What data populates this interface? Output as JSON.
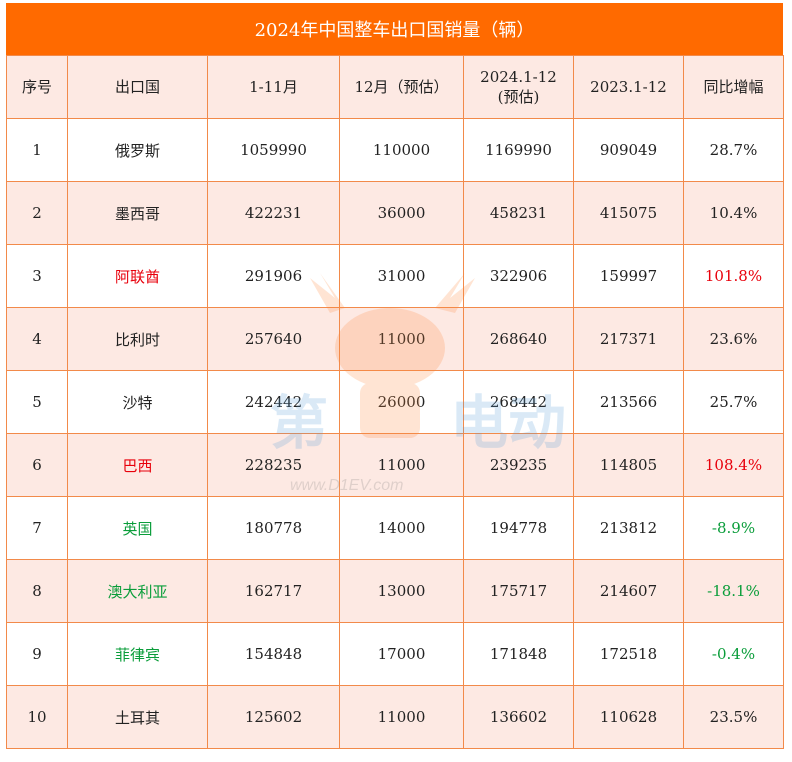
{
  "title": "2024年中国整车出口国销量（辆）",
  "columns": [
    "序号",
    "出口国",
    "1-11月",
    "12月（预估）",
    "2024.1-12\n(预估)",
    "2023.1-12",
    "同比增幅"
  ],
  "rows": [
    {
      "rank": "1",
      "country": "俄罗斯",
      "jan_nov": "1059990",
      "dec_est": "110000",
      "y2024": "1169990",
      "y2023": "909049",
      "yoy": "28.7%",
      "color": "normal"
    },
    {
      "rank": "2",
      "country": "墨西哥",
      "jan_nov": "422231",
      "dec_est": "36000",
      "y2024": "458231",
      "y2023": "415075",
      "yoy": "10.4%",
      "color": "normal"
    },
    {
      "rank": "3",
      "country": "阿联酋",
      "jan_nov": "291906",
      "dec_est": "31000",
      "y2024": "322906",
      "y2023": "159997",
      "yoy": "101.8%",
      "color": "red"
    },
    {
      "rank": "4",
      "country": "比利时",
      "jan_nov": "257640",
      "dec_est": "11000",
      "y2024": "268640",
      "y2023": "217371",
      "yoy": "23.6%",
      "color": "normal"
    },
    {
      "rank": "5",
      "country": "沙特",
      "jan_nov": "242442",
      "dec_est": "26000",
      "y2024": "268442",
      "y2023": "213566",
      "yoy": "25.7%",
      "color": "normal"
    },
    {
      "rank": "6",
      "country": "巴西",
      "jan_nov": "228235",
      "dec_est": "11000",
      "y2024": "239235",
      "y2023": "114805",
      "yoy": "108.4%",
      "color": "red"
    },
    {
      "rank": "7",
      "country": "英国",
      "jan_nov": "180778",
      "dec_est": "14000",
      "y2024": "194778",
      "y2023": "213812",
      "yoy": "-8.9%",
      "color": "green"
    },
    {
      "rank": "8",
      "country": "澳大利亚",
      "jan_nov": "162717",
      "dec_est": "13000",
      "y2024": "175717",
      "y2023": "214607",
      "yoy": "-18.1%",
      "color": "green"
    },
    {
      "rank": "9",
      "country": "菲律宾",
      "jan_nov": "154848",
      "dec_est": "17000",
      "y2024": "171848",
      "y2023": "172518",
      "yoy": "-0.4%",
      "color": "green"
    },
    {
      "rank": "10",
      "country": "土耳其",
      "jan_nov": "125602",
      "dec_est": "11000",
      "y2024": "136602",
      "y2023": "110628",
      "yoy": "23.5%",
      "color": "normal"
    }
  ],
  "watermark": {
    "text": "第一电动",
    "url": "www.D1EV.com"
  },
  "colors": {
    "header_bg": "#ff6a00",
    "stripe": "#fde9e3",
    "border": "#f28a4a",
    "positive_highlight": "#e8000b",
    "negative": "#0a9d3a"
  }
}
